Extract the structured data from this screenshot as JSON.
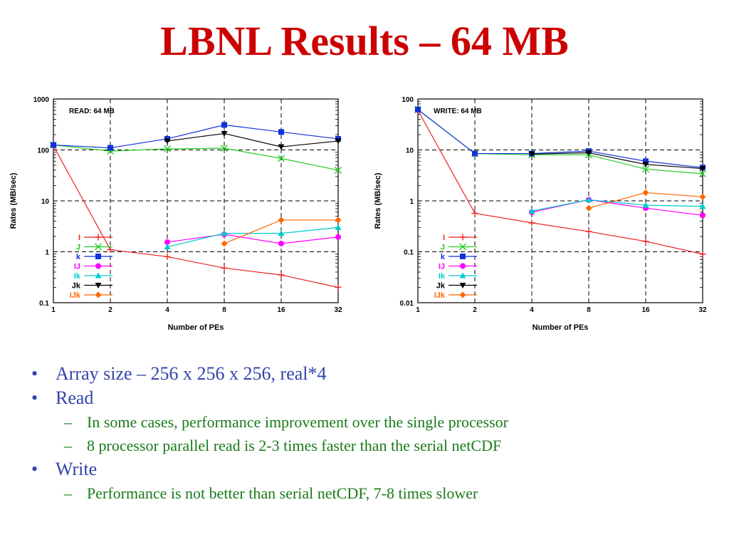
{
  "slide": {
    "title": "LBNL Results – 64 MB"
  },
  "bullets": [
    {
      "text": "Array size – 256 x 256 x 256, real*4",
      "sub": []
    },
    {
      "text": "Read",
      "sub": [
        "In some cases, performance improvement over the single processor",
        "8 processor parallel read is 2-3 times faster than the serial netCDF"
      ]
    },
    {
      "text": "Write",
      "sub": [
        "Performance is not better than serial netCDF, 7-8 times slower"
      ]
    }
  ],
  "chart_data": [
    {
      "type": "line",
      "panel_label": "READ: 64 MB",
      "xlabel": "Number of PEs",
      "ylabel": "Rates (MB/sec)",
      "x_scale": "log2",
      "y_scale": "log10",
      "x_ticks": [
        1,
        2,
        4,
        8,
        16,
        32
      ],
      "y_ticks": [
        0.1,
        1,
        10,
        100,
        1000
      ],
      "y_tick_labels": [
        "0.1",
        "1",
        "10",
        "100",
        "1000"
      ],
      "xlim": [
        1,
        32
      ],
      "ylim": [
        0.1,
        1000
      ],
      "grid": "dashed",
      "legend_placement": "bottom-left",
      "series": [
        {
          "name": "I",
          "color": "#ee2222",
          "marker": "plus",
          "x": [
            1,
            2,
            4,
            8,
            16,
            32
          ],
          "y": [
            120,
            1.1,
            0.8,
            0.48,
            0.35,
            0.2
          ]
        },
        {
          "name": "J",
          "color": "#22cc22",
          "marker": "x",
          "x": [
            1,
            2,
            4,
            8,
            16,
            32
          ],
          "y": [
            125,
            95,
            105,
            108,
            68,
            40
          ]
        },
        {
          "name": "k",
          "color": "#1133dd",
          "marker": "square",
          "x": [
            1,
            2,
            4,
            8,
            16,
            32
          ],
          "y": [
            125,
            110,
            165,
            310,
            225,
            165
          ]
        },
        {
          "name": "IJ",
          "color": "#ff00ff",
          "marker": "circle",
          "x": [
            4,
            8,
            16,
            32
          ],
          "y": [
            1.55,
            2.2,
            1.45,
            1.95
          ]
        },
        {
          "name": "Ik",
          "color": "#00cccc",
          "marker": "triangle",
          "x": [
            4,
            8,
            16,
            32
          ],
          "y": [
            1.25,
            2.3,
            2.3,
            3.0
          ]
        },
        {
          "name": "Jk",
          "color": "#000000",
          "marker": "triangle-down",
          "x": [
            4,
            8,
            16,
            32
          ],
          "y": [
            150,
            210,
            115,
            150
          ]
        },
        {
          "name": "IJk",
          "color": "#ff6600",
          "marker": "diamond",
          "x": [
            8,
            16,
            32
          ],
          "y": [
            1.45,
            4.2,
            4.2
          ]
        }
      ]
    },
    {
      "type": "line",
      "panel_label": "WRITE: 64 MB",
      "xlabel": "Number of PEs",
      "ylabel": "Rates (MB/sec)",
      "x_scale": "log2",
      "y_scale": "log10",
      "x_ticks": [
        1,
        2,
        4,
        8,
        16,
        32
      ],
      "y_ticks": [
        0.01,
        0.1,
        1,
        10,
        100
      ],
      "y_tick_labels": [
        "0.01",
        "0.1",
        "1",
        "10",
        "100"
      ],
      "xlim": [
        1,
        32
      ],
      "ylim": [
        0.01,
        100
      ],
      "grid": "dashed",
      "legend_placement": "bottom-left",
      "series": [
        {
          "name": "I",
          "color": "#ee2222",
          "marker": "plus",
          "x": [
            1,
            2,
            4,
            8,
            16,
            32
          ],
          "y": [
            60,
            0.57,
            0.37,
            0.25,
            0.16,
            0.09
          ]
        },
        {
          "name": "J",
          "color": "#22cc22",
          "marker": "x",
          "x": [
            1,
            2,
            4,
            8,
            16,
            32
          ],
          "y": [
            62,
            8.5,
            8.0,
            8.0,
            4.2,
            3.4
          ]
        },
        {
          "name": "k",
          "color": "#1133dd",
          "marker": "square",
          "x": [
            1,
            2,
            4,
            8,
            16,
            32
          ],
          "y": [
            62,
            8.5,
            8.5,
            9.5,
            6.0,
            4.5
          ]
        },
        {
          "name": "IJ",
          "color": "#ff00ff",
          "marker": "circle",
          "x": [
            4,
            8,
            16,
            32
          ],
          "y": [
            0.6,
            1.05,
            0.72,
            0.52
          ]
        },
        {
          "name": "Ik",
          "color": "#00cccc",
          "marker": "triangle",
          "x": [
            4,
            8,
            16,
            32
          ],
          "y": [
            0.63,
            1.05,
            0.82,
            0.78
          ]
        },
        {
          "name": "Jk",
          "color": "#000000",
          "marker": "triangle-down",
          "x": [
            4,
            8,
            16,
            32
          ],
          "y": [
            8.3,
            8.8,
            5.2,
            4.3
          ]
        },
        {
          "name": "IJk",
          "color": "#ff6600",
          "marker": "diamond",
          "x": [
            8,
            16,
            32
          ],
          "y": [
            0.72,
            1.45,
            1.2
          ]
        }
      ]
    }
  ]
}
